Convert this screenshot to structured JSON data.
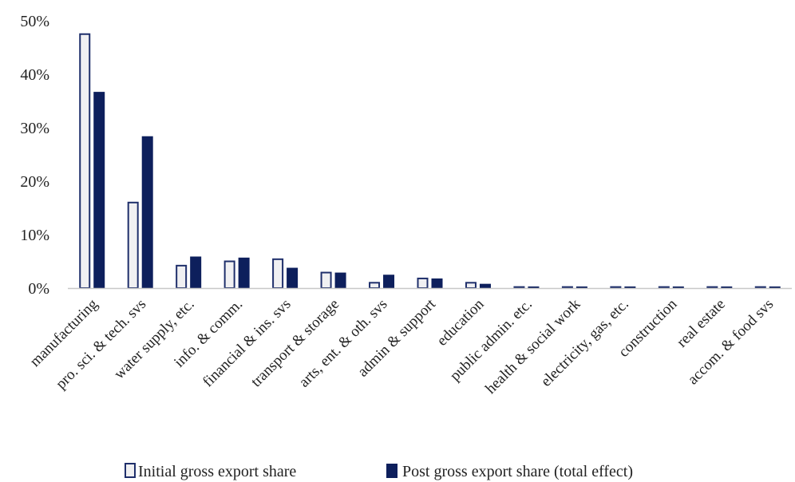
{
  "chart_data": {
    "type": "bar",
    "title": "",
    "xlabel": "",
    "ylabel": "",
    "ylim": [
      0,
      50
    ],
    "y_ticks": [
      "0%",
      "10%",
      "20%",
      "30%",
      "40%",
      "50%"
    ],
    "y_tick_values": [
      0,
      10,
      20,
      30,
      40,
      50
    ],
    "grid": false,
    "legend_position": "bottom",
    "categories": [
      "manufacturing",
      "pro. sci. & tech. svs",
      "water supply, etc.",
      "info. & comm.",
      "financial & ins. svs",
      "transport & storage",
      "arts, ent. & oth. svs",
      "admin & support",
      "education",
      "public admin. etc.",
      "health & social work",
      "electricity, gas, etc.",
      "construction",
      "real estate",
      "accom. & food svs"
    ],
    "series": [
      {
        "name": "Initial gross export share",
        "style": "outline",
        "color": "#1f2f6b",
        "fill": "#f0f0f2",
        "values": [
          47.5,
          16.0,
          4.2,
          5.0,
          5.4,
          2.9,
          1.0,
          1.8,
          1.0,
          0.2,
          0.2,
          0.2,
          0.2,
          0.2,
          0.2
        ]
      },
      {
        "name": "Post gross export share (total effect)",
        "style": "solid",
        "color": "#0d1f5c",
        "fill": "#0d1f5c",
        "values": [
          36.7,
          28.4,
          5.9,
          5.7,
          3.8,
          2.9,
          2.5,
          1.8,
          0.8,
          0.3,
          0.3,
          0.3,
          0.3,
          0.3,
          0.3
        ]
      }
    ]
  }
}
